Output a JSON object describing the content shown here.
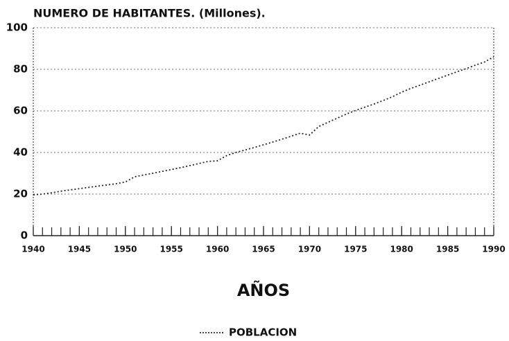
{
  "chart_data": {
    "type": "line",
    "title": "NUMERO DE HABITANTES. (Millones).",
    "xlabel": "AÑOS",
    "x": [
      1940,
      1941,
      1942,
      1943,
      1944,
      1945,
      1946,
      1947,
      1948,
      1949,
      1950,
      1951,
      1952,
      1953,
      1954,
      1955,
      1956,
      1957,
      1958,
      1959,
      1960,
      1961,
      1962,
      1963,
      1964,
      1965,
      1966,
      1967,
      1968,
      1969,
      1970,
      1971,
      1972,
      1973,
      1974,
      1975,
      1976,
      1977,
      1978,
      1979,
      1980,
      1981,
      1982,
      1983,
      1984,
      1985,
      1986,
      1987,
      1988,
      1989,
      1990
    ],
    "series": [
      {
        "name": "POBLACION",
        "color": "#222222",
        "values": [
          19.6,
          20,
          20.6,
          21.4,
          22,
          22.6,
          23.2,
          23.8,
          24.4,
          25,
          25.8,
          28.3,
          29.2,
          30,
          30.9,
          31.8,
          32.7,
          33.7,
          34.7,
          35.7,
          36,
          38.5,
          40,
          41.2,
          42.4,
          43.7,
          45,
          46.4,
          47.8,
          49.3,
          48.4,
          52.5,
          54.5,
          56.5,
          58.5,
          60.2,
          61.8,
          63.3,
          65,
          66.8,
          69,
          70.8,
          72.4,
          74,
          75.6,
          77.2,
          78.8,
          80.3,
          82,
          83.5,
          86
        ]
      }
    ],
    "xlim": [
      1940,
      1990
    ],
    "xticks": [
      1940,
      1945,
      1950,
      1955,
      1960,
      1965,
      1970,
      1975,
      1980,
      1985,
      1990
    ],
    "ylim": [
      0,
      100
    ],
    "yticks": [
      0,
      20,
      40,
      60,
      80,
      100
    ],
    "legend": "bottom"
  }
}
